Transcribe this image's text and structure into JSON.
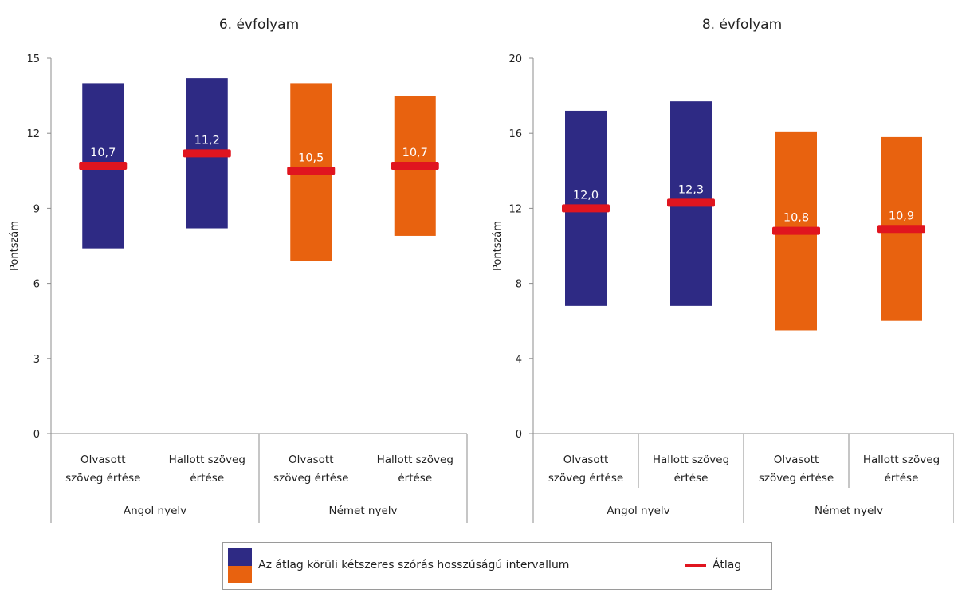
{
  "chart_data": [
    {
      "type": "bar",
      "title": "6. évfolyam",
      "ylabel": "Pontszám",
      "ylim": [
        0,
        15
      ],
      "yticks": [
        0,
        3,
        6,
        9,
        12,
        15
      ],
      "grid": false,
      "groups": [
        {
          "label": "Angol nyelv",
          "categories": [
            "Olvasott szöveg értése",
            "Hallott szöveg értése"
          ]
        },
        {
          "label": "Német nyelv",
          "categories": [
            "Olvasott szöveg értése",
            "Hallott szöveg értése"
          ]
        }
      ],
      "category_lines": [
        [
          "Olvasott",
          "szöveg értése"
        ],
        [
          "Hallott szöveg",
          "értése"
        ],
        [
          "Olvasott",
          "szöveg értése"
        ],
        [
          "Hallott szöveg",
          "értése"
        ]
      ],
      "series": [
        {
          "low": 7.4,
          "high": 14.0,
          "mean": 10.7,
          "mean_label": "10,7",
          "color": "#2e2a84"
        },
        {
          "low": 8.2,
          "high": 14.2,
          "mean": 11.2,
          "mean_label": "11,2",
          "color": "#2e2a84"
        },
        {
          "low": 6.9,
          "high": 14.0,
          "mean": 10.5,
          "mean_label": "10,5",
          "color": "#e8620f"
        },
        {
          "low": 7.9,
          "high": 13.5,
          "mean": 10.7,
          "mean_label": "10,7",
          "color": "#e8620f"
        }
      ]
    },
    {
      "type": "bar",
      "title": "8. évfolyam",
      "ylabel": "Pontszám",
      "ylim": [
        0,
        20
      ],
      "yticks": [
        0,
        4,
        8,
        12,
        16,
        20
      ],
      "grid": false,
      "groups": [
        {
          "label": "Angol nyelv",
          "categories": [
            "Olvasott szöveg értése",
            "Hallott szöveg értése"
          ]
        },
        {
          "label": "Német nyelv",
          "categories": [
            "Olvasott szöveg értése",
            "Hallott szöveg értése"
          ]
        }
      ],
      "category_lines": [
        [
          "Olvasott",
          "szöveg értése"
        ],
        [
          "Hallott szöveg",
          "értése"
        ],
        [
          "Olvasott",
          "szöveg értése"
        ],
        [
          "Hallott szöveg",
          "értése"
        ]
      ],
      "series": [
        {
          "low": 6.8,
          "high": 17.2,
          "mean": 12.0,
          "mean_label": "12,0",
          "color": "#2e2a84"
        },
        {
          "low": 6.8,
          "high": 17.7,
          "mean": 12.3,
          "mean_label": "12,3",
          "color": "#2e2a84"
        },
        {
          "low": 5.5,
          "high": 16.1,
          "mean": 10.8,
          "mean_label": "10,8",
          "color": "#e8620f"
        },
        {
          "low": 6.0,
          "high": 15.8,
          "mean": 10.9,
          "mean_label": "10,9",
          "color": "#e8620f"
        }
      ]
    }
  ],
  "legend": {
    "interval_label": "Az átlag körüli kétszeres szórás hosszúságú intervallum",
    "mean_label": "Átlag",
    "colors": {
      "blue": "#2e2a84",
      "orange": "#e8620f",
      "mean": "#e0151f"
    }
  }
}
